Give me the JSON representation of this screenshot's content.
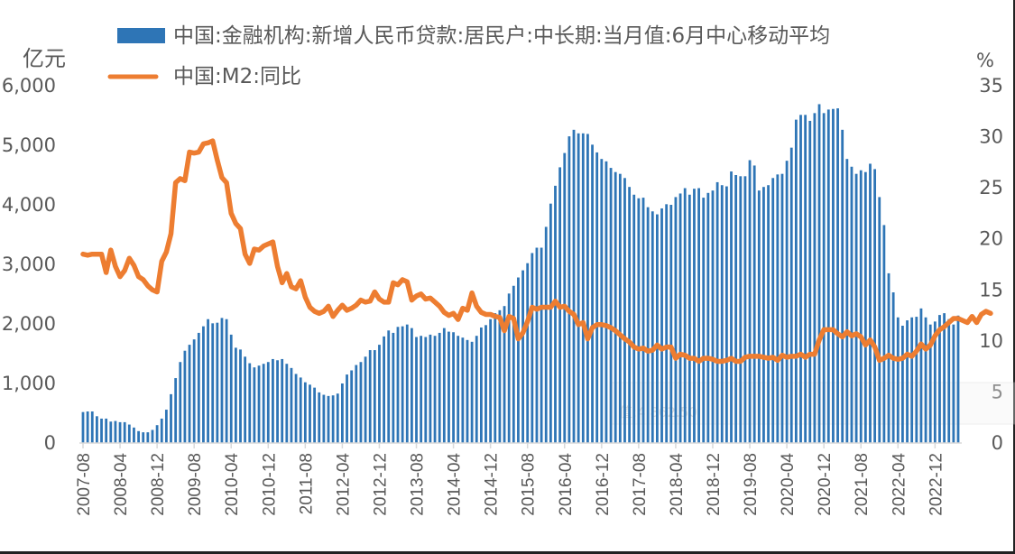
{
  "chart_data": {
    "type": "bar+line",
    "title": "",
    "left_axis": {
      "unit_label": "亿元",
      "range": [
        0,
        6000
      ],
      "ticks": [
        0,
        1000,
        2000,
        3000,
        4000,
        5000,
        6000
      ],
      "tick_labels": [
        "0",
        "1,000",
        "2,000",
        "3,000",
        "4,000",
        "5,000",
        "6,000"
      ]
    },
    "right_axis": {
      "unit_label": "%",
      "range": [
        0,
        35
      ],
      "ticks": [
        0,
        5,
        10,
        15,
        20,
        25,
        30,
        35
      ],
      "tick_labels": [
        "0",
        "5",
        "10",
        "15",
        "20",
        "25",
        "30",
        "35"
      ]
    },
    "x_start": "2007-08",
    "x_end": "2023-03",
    "x_tick_labels": [
      "2007-08",
      "2008-04",
      "2008-12",
      "2009-08",
      "2010-04",
      "2010-12",
      "2011-08",
      "2012-04",
      "2012-12",
      "2013-08",
      "2014-04",
      "2014-12",
      "2015-08",
      "2016-04",
      "2016-12",
      "2017-08",
      "2018-04",
      "2018-12",
      "2019-08",
      "2020-04",
      "2020-12",
      "2021-08",
      "2022-04",
      "2022-12"
    ],
    "legend": {
      "position": "top",
      "entries": [
        {
          "name": "中国:金融机构:新增人民币贷款:居民户:中长期:当月值:6月中心移动平均",
          "type": "bar",
          "color": "#2E75B6"
        },
        {
          "name": "中国:M2:同比",
          "type": "line",
          "color": "#ED7D31"
        }
      ]
    },
    "series": [
      {
        "name": "中国:金融机构:新增人民币贷款:居民户:中长期:当月值:6月中心移动平均",
        "type": "bar",
        "axis": "left",
        "color": "#2E75B6",
        "values": [
          520,
          530,
          530,
          450,
          410,
          410,
          360,
          370,
          350,
          350,
          310,
          260,
          200,
          180,
          180,
          220,
          300,
          410,
          560,
          820,
          1090,
          1360,
          1550,
          1650,
          1740,
          1850,
          1960,
          2080,
          2010,
          2020,
          2100,
          2080,
          1820,
          1600,
          1570,
          1450,
          1340,
          1270,
          1300,
          1330,
          1360,
          1410,
          1390,
          1410,
          1330,
          1260,
          1160,
          1100,
          1020,
          980,
          930,
          850,
          810,
          790,
          800,
          830,
          1000,
          1150,
          1220,
          1310,
          1360,
          1450,
          1560,
          1560,
          1650,
          1790,
          1890,
          1850,
          1950,
          1960,
          1990,
          1930,
          1780,
          1800,
          1780,
          1820,
          1800,
          1850,
          1930,
          1870,
          1860,
          1800,
          1770,
          1730,
          1700,
          1800,
          1940,
          1980,
          2080,
          2180,
          2230,
          2300,
          2510,
          2640,
          2780,
          2900,
          3020,
          3190,
          3280,
          3280,
          3630,
          4020,
          4320,
          4630,
          4870,
          5150,
          5260,
          5200,
          5200,
          5190,
          5010,
          4880,
          4770,
          4730,
          4620,
          4550,
          4520,
          4450,
          4300,
          4170,
          4110,
          4120,
          3960,
          3890,
          3840,
          3940,
          4010,
          4000,
          4130,
          4190,
          4280,
          4170,
          4270,
          4280,
          4120,
          4200,
          4240,
          4380,
          4330,
          4310,
          4560,
          4500,
          4480,
          4480,
          4750,
          4660,
          4240,
          4300,
          4330,
          4450,
          4510,
          4520,
          4740,
          4960,
          5430,
          5510,
          5510,
          5410,
          5540,
          5690,
          5540,
          5600,
          5610,
          5620,
          5260,
          4770,
          4640,
          4520,
          4580,
          4550,
          4690,
          4600,
          4130,
          3660,
          2850,
          2530,
          2110,
          1970,
          2060,
          2110,
          2120,
          2260,
          2110,
          1990,
          2040,
          2150,
          2180,
          2080,
          1990,
          2140
        ]
      },
      {
        "name": "中国:M2:同比",
        "type": "line",
        "axis": "right",
        "color": "#ED7D31",
        "values": [
          18.5,
          18.4,
          18.5,
          18.5,
          18.5,
          16.7,
          18.9,
          17.3,
          16.3,
          16.9,
          18.1,
          17.4,
          16.3,
          16.0,
          15.4,
          15.0,
          14.8,
          17.8,
          18.7,
          20.5,
          25.5,
          25.9,
          25.7,
          28.5,
          28.4,
          28.5,
          29.3,
          29.4,
          29.6,
          27.7,
          26.0,
          25.5,
          22.5,
          21.5,
          21.0,
          18.5,
          17.6,
          19.0,
          18.9,
          19.3,
          19.5,
          19.7,
          17.3,
          15.7,
          16.6,
          15.3,
          15.1,
          15.9,
          14.3,
          13.3,
          12.9,
          12.7,
          12.9,
          13.4,
          12.4,
          13.0,
          13.5,
          13.0,
          13.2,
          13.5,
          14.0,
          13.8,
          13.9,
          14.8,
          14.1,
          13.8,
          13.8,
          15.7,
          15.5,
          16.0,
          15.8,
          14.0,
          14.4,
          14.6,
          14.1,
          14.2,
          13.8,
          13.4,
          12.8,
          12.5,
          12.7,
          12.1,
          13.2,
          13.0,
          14.7,
          13.4,
          12.8,
          12.6,
          12.6,
          12.4,
          12.3,
          11.0,
          12.4,
          12.2,
          10.2,
          10.8,
          11.9,
          13.3,
          13.1,
          13.3,
          13.3,
          13.3,
          13.9,
          13.3,
          13.4,
          12.9,
          12.6,
          11.6,
          11.8,
          10.2,
          11.3,
          11.6,
          11.6,
          11.5,
          11.3,
          11.0,
          10.6,
          10.2,
          9.9,
          9.4,
          9.2,
          9.3,
          9.0,
          9.1,
          9.6,
          9.2,
          9.4,
          9.4,
          8.3,
          8.7,
          8.6,
          8.3,
          8.3,
          8.0,
          8.3,
          8.3,
          8.2,
          8.0,
          8.0,
          8.1,
          8.3,
          8.0,
          8.0,
          8.4,
          8.5,
          8.5,
          8.5,
          8.4,
          8.3,
          8.4,
          8.1,
          8.6,
          8.4,
          8.5,
          8.5,
          8.7,
          8.4,
          8.7,
          8.7,
          10.1,
          11.1,
          11.1,
          11.1,
          10.7,
          10.4,
          10.9,
          10.5,
          10.7,
          10.4,
          9.6,
          10.1,
          9.4,
          8.1,
          8.3,
          8.6,
          8.3,
          8.2,
          8.3,
          8.7,
          8.5,
          9.0,
          9.7,
          9.2,
          9.6,
          10.5,
          11.1,
          11.4,
          11.8,
          12.2,
          12.2,
          12.0,
          11.8,
          12.4,
          11.8,
          12.6,
          12.9,
          12.7
        ]
      }
    ]
  },
  "tooltip_ghost": {
    "value_line": "值:4,862.50"
  }
}
